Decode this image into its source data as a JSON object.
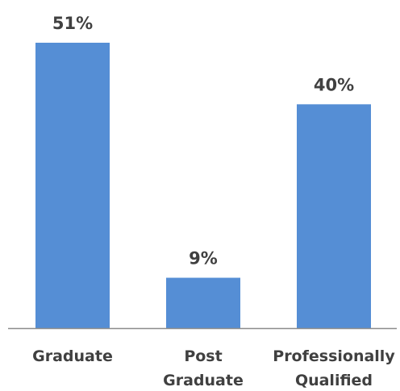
{
  "chart_data": {
    "type": "bar",
    "categories": [
      [
        "Graduate"
      ],
      [
        "Post",
        "Graduate"
      ],
      [
        "Professionally",
        "Qualified"
      ]
    ],
    "values": [
      51,
      9,
      40
    ],
    "value_labels": [
      "51%",
      "9%",
      "40%"
    ],
    "ylim": [
      0,
      51
    ],
    "unit": "%",
    "bar_color": "#558ed5",
    "axis_color": "#8c8c8c",
    "text_color": "#404040",
    "grid": false,
    "legend": "none"
  }
}
